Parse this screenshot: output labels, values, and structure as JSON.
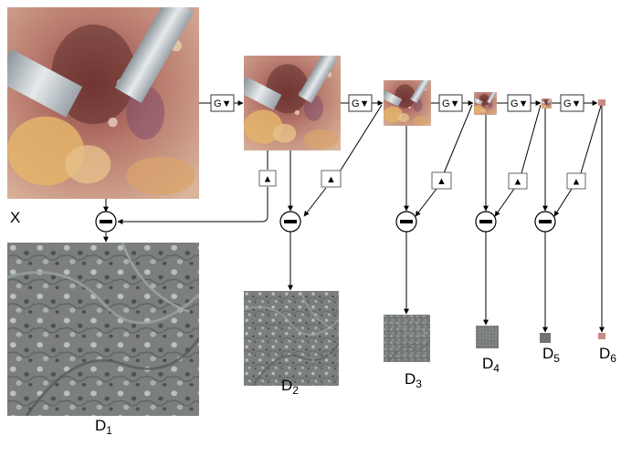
{
  "input_label": "X",
  "output_labels": [
    "D",
    "D",
    "D",
    "D",
    "D",
    "D"
  ],
  "output_subscripts": [
    "1",
    "2",
    "3",
    "4",
    "5",
    "6"
  ],
  "gaussian_op_label": "G",
  "down_arrow_glyph": "▼",
  "up_arrow_glyph": "▲",
  "colors": {
    "surgical_tissue": "#b87a6e",
    "surgical_dark": "#5a2b2a",
    "fat_yellow": "#e3b46a",
    "instrument_gray": "#c9cfd3",
    "difference_gray": "#7c7f7d",
    "line": "#000000",
    "box_border": "#333333"
  }
}
